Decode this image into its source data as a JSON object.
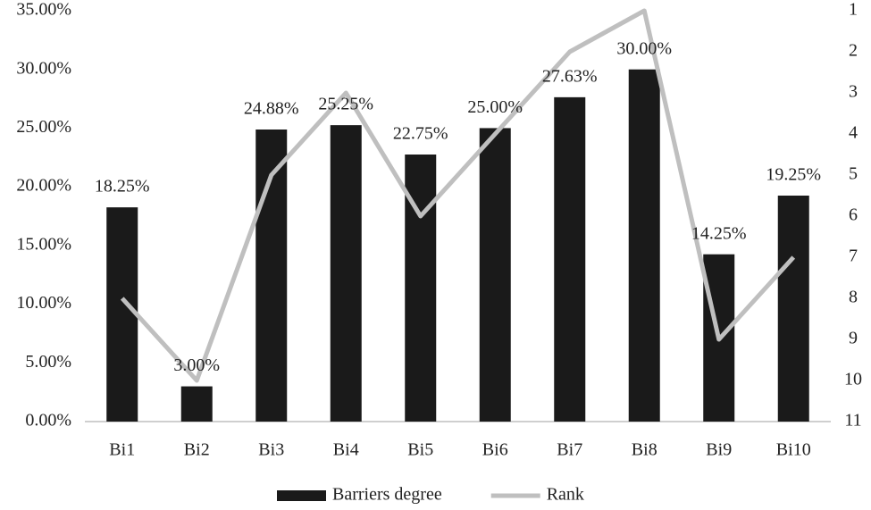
{
  "chart_data": {
    "type": "combo",
    "categories": [
      "Bi1",
      "Bi2",
      "Bi3",
      "Bi4",
      "Bi5",
      "Bi6",
      "Bi7",
      "Bi8",
      "Bi9",
      "Bi10"
    ],
    "series": [
      {
        "name": "Barriers degree",
        "type": "bar",
        "color": "#1a1a1a",
        "values": [
          18.25,
          3.0,
          24.88,
          25.25,
          22.75,
          25.0,
          27.63,
          30.0,
          14.25,
          19.25
        ],
        "value_labels": [
          "18.25%",
          "3.00%",
          "24.88%",
          "25.25%",
          "22.75%",
          "25.00%",
          "27.63%",
          "30.00%",
          "14.25%",
          "19.25%"
        ]
      },
      {
        "name": "Rank",
        "type": "line",
        "axis": "y2",
        "color": "#bfbfbf",
        "values": [
          8,
          10,
          5,
          3,
          6,
          4,
          2,
          1,
          9,
          7
        ]
      }
    ],
    "ylim": [
      0,
      35
    ],
    "yticks": [
      {
        "value": 0,
        "label": "0.00%"
      },
      {
        "value": 5,
        "label": "5.00%"
      },
      {
        "value": 10,
        "label": "10.00%"
      },
      {
        "value": 15,
        "label": "15.00%"
      },
      {
        "value": 20,
        "label": "20.00%"
      },
      {
        "value": 25,
        "label": "25.00%"
      },
      {
        "value": 30,
        "label": "30.00%"
      },
      {
        "value": 35,
        "label": "35.00%"
      }
    ],
    "y2lim": [
      11,
      1
    ],
    "y2ticks": [
      1,
      2,
      3,
      4,
      5,
      6,
      7,
      8,
      9,
      10,
      11
    ],
    "legend": "bottom"
  }
}
